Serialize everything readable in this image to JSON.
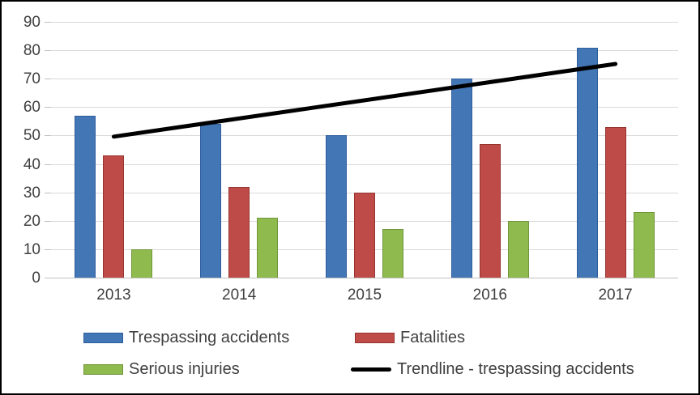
{
  "figure": {
    "background": "#FFFFFF",
    "border_color": "#000000"
  },
  "chart_data": {
    "type": "bar",
    "title": "",
    "xlabel": "",
    "ylabel": "",
    "categories": [
      "2013",
      "2014",
      "2015",
      "2016",
      "2017"
    ],
    "series": [
      {
        "name": "Trespassing accidents",
        "color": "#4276B4",
        "border_color": "#2F5E9E",
        "values": [
          57,
          54,
          50,
          70,
          81
        ]
      },
      {
        "name": "Fatalities",
        "color": "#BE4B48",
        "border_color": "#97342F",
        "values": [
          43,
          32,
          30,
          47,
          53
        ]
      },
      {
        "name": "Serious injuries",
        "color": "#8FBA4E",
        "border_color": "#71963B",
        "values": [
          10,
          21,
          17,
          20,
          23
        ]
      }
    ],
    "trendline": {
      "name": "Trendline - trespassing accidents",
      "color": "#000000",
      "start_value": 49.6,
      "end_value": 75.2
    },
    "ylim": [
      0,
      90
    ],
    "ytick_step": 10,
    "ytick_labels": [
      "0",
      "10",
      "20",
      "30",
      "40",
      "50",
      "60",
      "70",
      "80",
      "90"
    ],
    "grid": true,
    "legend_position": "bottom",
    "colors": {
      "gridline": "#D9D9D9",
      "axis": "#BFBFBF",
      "tick": "#BFBFBF",
      "label_text": "#404040",
      "legend_text": "#3F3F3F"
    }
  }
}
